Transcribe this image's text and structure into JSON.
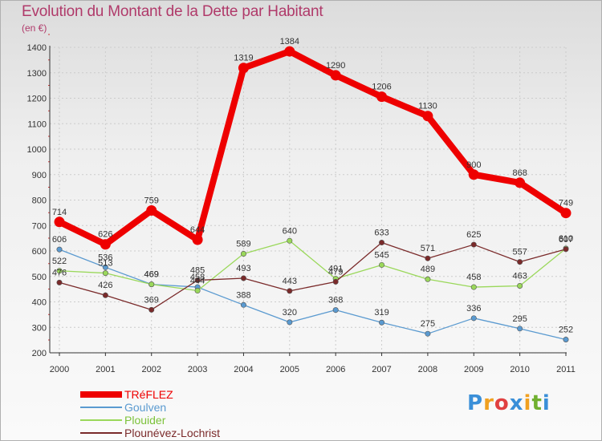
{
  "title": "Evolution du Montant de la Dette par Habitant",
  "subtitle": "(en €)",
  "logo": {
    "letters": [
      "P",
      "r",
      "o",
      "x",
      "i",
      "t",
      "i"
    ],
    "colors": [
      "#3a8fd8",
      "#f0a020",
      "#e04040",
      "#3a8fd8",
      "#f0a020",
      "#70b030",
      "#3a8fd8"
    ]
  },
  "chart_data": {
    "type": "line",
    "x": [
      "2000",
      "2001",
      "2002",
      "2003",
      "2004",
      "2005",
      "2006",
      "2007",
      "2008",
      "2009",
      "2010",
      "2011"
    ],
    "ylim": [
      200,
      1400
    ],
    "yticks": [
      200,
      300,
      400,
      500,
      600,
      700,
      800,
      900,
      1000,
      1100,
      1200,
      1300,
      1400
    ],
    "grid": true,
    "legend_position": "bottom-left",
    "series": [
      {
        "name": "TRéFLEZ",
        "color": "#ee0000",
        "values": [
          714,
          626,
          759,
          644,
          1319,
          1384,
          1290,
          1206,
          1130,
          900,
          868,
          749
        ]
      },
      {
        "name": "Goulven",
        "color": "#5a9ad0",
        "values": [
          606,
          536,
          469,
          458,
          388,
          320,
          368,
          319,
          275,
          336,
          295,
          252
        ]
      },
      {
        "name": "Plouider",
        "color": "#9ad85a",
        "values": [
          522,
          513,
          469,
          444,
          589,
          640,
          491,
          545,
          489,
          458,
          463,
          610
        ]
      },
      {
        "name": "Plounévez-Lochrist",
        "color": "#7a2a2a",
        "values": [
          476,
          426,
          369,
          485,
          493,
          443,
          479,
          633,
          571,
          625,
          557,
          607
        ]
      }
    ]
  }
}
